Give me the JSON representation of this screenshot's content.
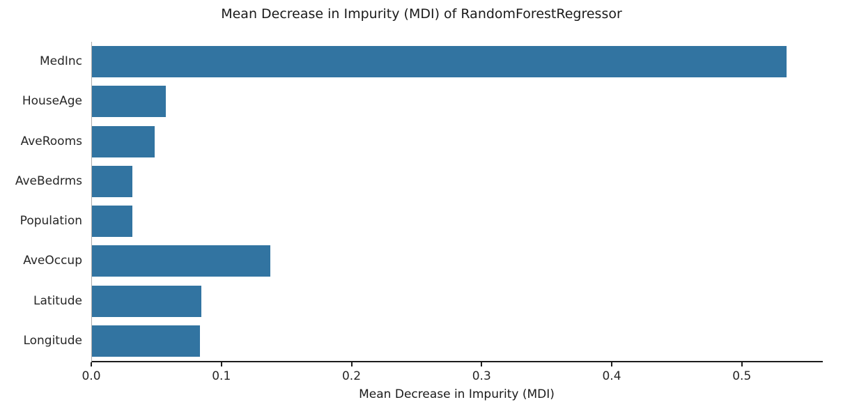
{
  "chart_data": {
    "type": "bar",
    "orientation": "horizontal",
    "title": "Mean Decrease in Impurity (MDI) of RandomForestRegressor",
    "xlabel": "Mean Decrease in Impurity (MDI)",
    "ylabel": "",
    "categories": [
      "MedInc",
      "HouseAge",
      "AveRooms",
      "AveBedrms",
      "Population",
      "AveOccup",
      "Latitude",
      "Longitude"
    ],
    "values": [
      0.534,
      0.057,
      0.048,
      0.031,
      0.031,
      0.137,
      0.084,
      0.083
    ],
    "xlim": [
      0,
      0.5617
    ],
    "xticks": [
      0.0,
      0.1,
      0.2,
      0.3,
      0.4,
      0.5
    ],
    "xtick_labels": [
      "0.0",
      "0.1",
      "0.2",
      "0.3",
      "0.4",
      "0.5"
    ],
    "bar_color": "#3274A1",
    "axis_color": "#1c1c1c",
    "grid": false,
    "legend": null
  }
}
